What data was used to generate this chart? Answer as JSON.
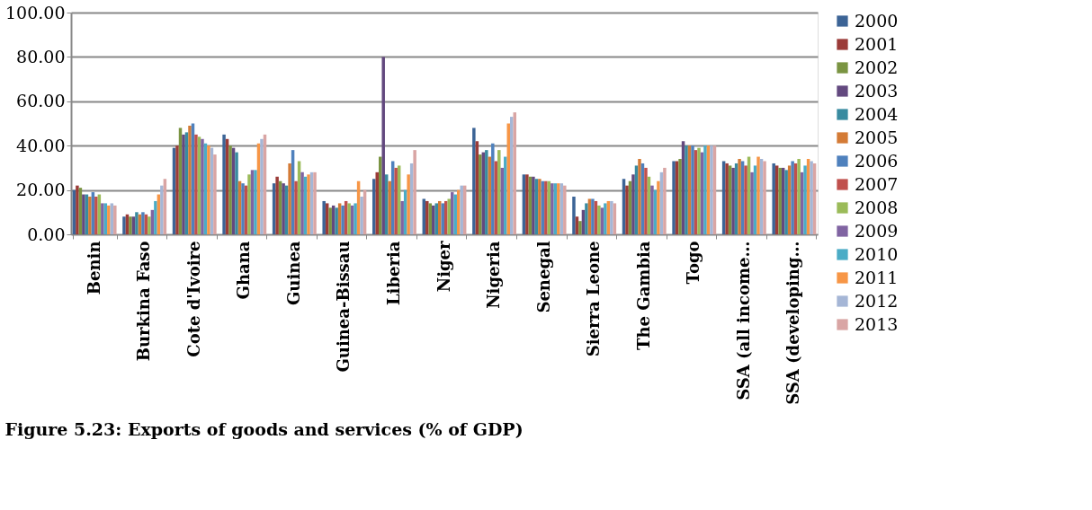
{
  "chart_data": {
    "type": "bar",
    "annotations": [
      "Figure 5.23: Exports of goods and services (% of GDP)"
    ],
    "categories": [
      "Benin",
      "Burkina Faso",
      "Cote d'Ivoire",
      "Ghana",
      "Guinea",
      "Guinea-Bissau",
      "Liberia",
      "Niger",
      "Nigeria",
      "Senegal",
      "Sierra Leone",
      "The Gambia",
      "Togo",
      "SSA (all income…",
      "SSA (developing…"
    ],
    "series": [
      {
        "name": "2000",
        "color": "#3c6496",
        "values": [
          20,
          8,
          39,
          45,
          23,
          15,
          25,
          16,
          48,
          27,
          17,
          25,
          33,
          33,
          32
        ]
      },
      {
        "name": "2001",
        "color": "#9b3b38",
        "values": [
          22,
          9,
          40,
          43,
          26,
          14,
          28,
          15,
          42,
          27,
          8,
          22,
          33,
          32,
          31
        ]
      },
      {
        "name": "2002",
        "color": "#7a9442",
        "values": [
          21,
          8,
          48,
          40,
          24,
          12,
          35,
          14,
          36,
          26,
          6,
          24,
          34,
          31,
          30
        ]
      },
      {
        "name": "2003",
        "color": "#63497f",
        "values": [
          18,
          8,
          45,
          39,
          23,
          13,
          80,
          13,
          37,
          26,
          11,
          27,
          42,
          30,
          30
        ]
      },
      {
        "name": "2004",
        "color": "#398ba0",
        "values": [
          18,
          10,
          46,
          37,
          22,
          12,
          27,
          14,
          38,
          25,
          14,
          31,
          40,
          32,
          29
        ]
      },
      {
        "name": "2005",
        "color": "#d47b36",
        "values": [
          17,
          9,
          49,
          24,
          32,
          14,
          24,
          15,
          35,
          25,
          16,
          34,
          40,
          34,
          31
        ]
      },
      {
        "name": "2006",
        "color": "#4f81bd",
        "values": [
          19,
          10,
          50,
          23,
          38,
          13,
          33,
          14,
          41,
          24,
          16,
          32,
          40,
          33,
          33
        ]
      },
      {
        "name": "2007",
        "color": "#c0504d",
        "values": [
          17,
          9,
          45,
          22,
          24,
          15,
          30,
          15,
          33,
          24,
          15,
          30,
          38,
          31,
          32
        ]
      },
      {
        "name": "2008",
        "color": "#9bbb59",
        "values": [
          18,
          8,
          44,
          27,
          33,
          14,
          31,
          16,
          38,
          24,
          13,
          26,
          39,
          35,
          34
        ]
      },
      {
        "name": "2009",
        "color": "#8064a2",
        "values": [
          14,
          11,
          43,
          29,
          28,
          13,
          15,
          19,
          30,
          23,
          12,
          22,
          37,
          28,
          28
        ]
      },
      {
        "name": "2010",
        "color": "#4bacc6",
        "values": [
          14,
          15,
          41,
          29,
          26,
          14,
          20,
          18,
          35,
          23,
          14,
          20,
          40,
          31,
          31
        ]
      },
      {
        "name": "2011",
        "color": "#f79646",
        "values": [
          13,
          18,
          40,
          41,
          27,
          24,
          27,
          20,
          50,
          23,
          15,
          24,
          40,
          35,
          34
        ]
      },
      {
        "name": "2012",
        "color": "#a5b6d6",
        "values": [
          14,
          22,
          39,
          43,
          28,
          17,
          32,
          22,
          53,
          23,
          15,
          28,
          40,
          34,
          33
        ]
      },
      {
        "name": "2013",
        "color": "#d9a5a4",
        "values": [
          13,
          25,
          36,
          45,
          28,
          20,
          38,
          22,
          55,
          22,
          14,
          30,
          40,
          33,
          32
        ]
      }
    ],
    "ylim": [
      0,
      100
    ],
    "yticks": [
      {
        "value": 0,
        "label": "0.00"
      },
      {
        "value": 20,
        "label": "20.00"
      },
      {
        "value": 40,
        "label": "40.00"
      },
      {
        "value": 60,
        "label": "60.00"
      },
      {
        "value": 80,
        "label": "80.00"
      },
      {
        "value": 100,
        "label": "100.00"
      }
    ],
    "grid": "y",
    "legend": "right"
  }
}
